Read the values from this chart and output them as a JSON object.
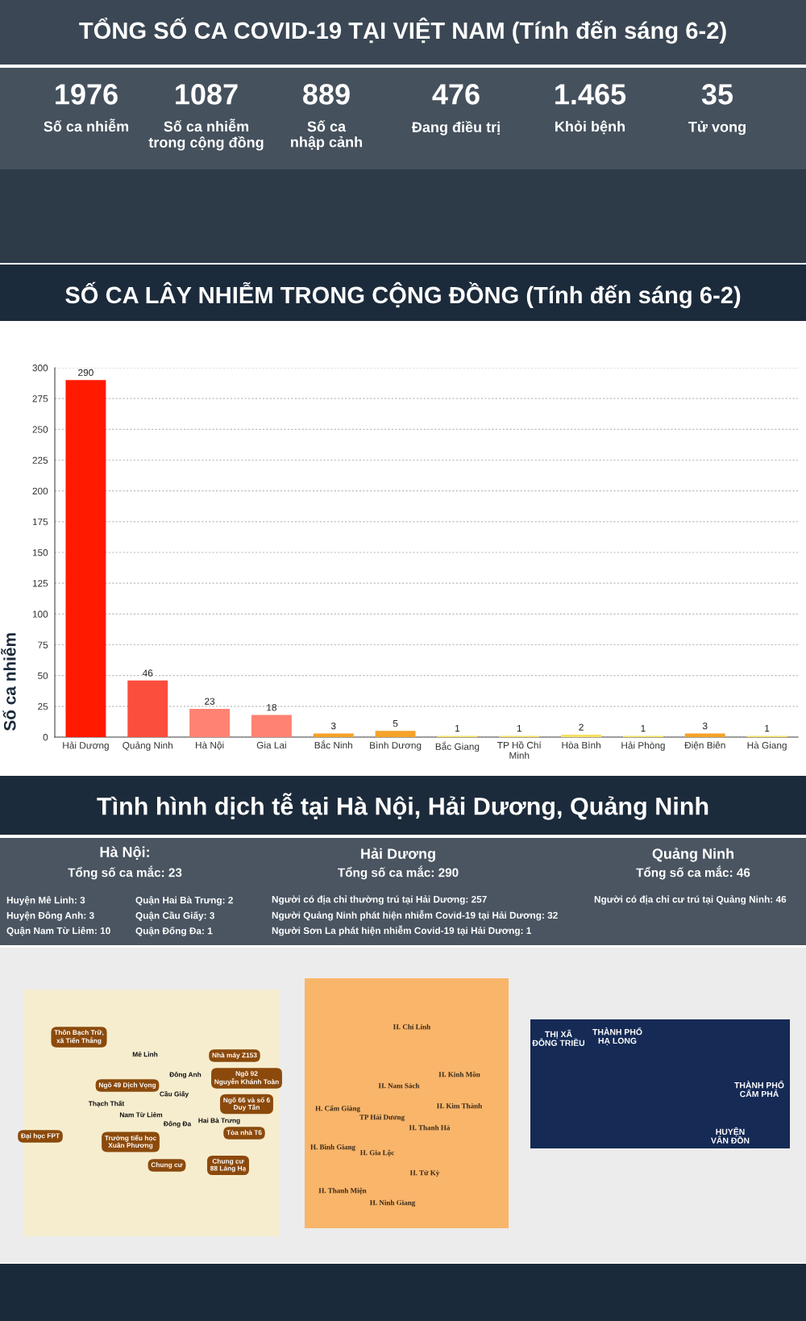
{
  "chart_data": [
    {
      "type": "other",
      "title": "TỔNG SỐ CA COVID-19 TẠI VIỆT NAM (Tính đến sáng 6-2)",
      "annotations": [
        "1976",
        "Số ca nhiễm",
        "1087",
        "Số ca nhiễm\ntrong cộng đồng",
        "889",
        "Số ca\nnhập cảnh",
        "476",
        "Đang điều trị",
        "1.465",
        "Khỏi bệnh",
        "35",
        "Tử vong"
      ]
    },
    {
      "type": "bar",
      "title": "SỐ CA LÂY NHIỄM TRONG CỘNG ĐỒNG (Tính đến sáng 6-2)",
      "ylabel": "Số ca nhiễm",
      "categories": [
        "Hải Dương",
        "Quảng Ninh",
        "Hà Nội",
        "Gia Lai",
        "Bắc Ninh",
        "Bình Dương",
        "Bắc Giang",
        "TP Hồ Chí\nMinh",
        "Hòa Bình",
        "Hải Phòng",
        "Điện Biên",
        "Hà Giang"
      ],
      "values": [
        290,
        46,
        23,
        18,
        3,
        5,
        1,
        1,
        2,
        1,
        3,
        1
      ],
      "colors": [
        "#ff1a00",
        "#fb4e3c",
        "#ff8272",
        "#ff8272",
        "#f5a229",
        "#f5a229",
        "#f7e160",
        "#f7e160",
        "#f7e160",
        "#f7e160",
        "#f5a229",
        "#f7e160"
      ],
      "ylim": [
        0,
        300
      ],
      "yticks": [
        0,
        25,
        50,
        75,
        100,
        125,
        150,
        175,
        200,
        225,
        250,
        275,
        300
      ],
      "grid": "y",
      "data_labels": true
    },
    {
      "type": "other",
      "title": "Tình hình dịch tễ tại Hà Nội, Hải Dương, Quảng Ninh",
      "annotations": [
        "Hà Nội:",
        "Tổng số ca mắc: 23",
        "Huyện Mê Linh: 3",
        "Huyện Đông Anh: 3",
        "Quận Nam Từ Liêm: 10",
        "Quận Hai Bà Trưng: 2",
        "Quận Cầu Giấy: 3",
        "Quận Đống Đa: 1",
        "Hải Dương",
        "Tổng số ca mắc: 290",
        "Người có địa chỉ thường trú tại Hải Dương: 257",
        "Người Quảng Ninh phát hiện nhiễm Covid-19 tại Hải Dương: 32",
        "Người Sơn La phát hiện nhiễm Covid-19 tại Hải Dương: 1",
        "Quảng Ninh",
        "Tổng số ca mắc: 46",
        "Người có địa chỉ cư trú tại Quảng Ninh: 46",
        "Thôn Bạch Trữ,\nxã Tiến Thắng",
        "Mê Linh",
        "Nhà máy Z153",
        "Đông Anh",
        "Ngõ 92\nNguyễn Khánh Toàn",
        "Ngõ 49 Dịch Vọng",
        "Cầu Giấy",
        "Thạch Thất",
        "Ngõ 66 và số 6\nDuy Tân",
        "Nam Từ Liêm",
        "Hai Bà Trưng",
        "Đống Đa",
        "Đại học FPT",
        "Tòa nhà T6",
        "Trường tiểu học\nXuân Phương",
        "Chung cư",
        "Chung cư\n88 Láng Hạ",
        "H. Chí Linh",
        "H. Nam Sách",
        "H. Kinh Môn",
        "H. Cẩm Giàng",
        "TP Hải Dương",
        "H. Kim Thành",
        "H. Thanh Hà",
        "H. Bình Giang",
        "H. Gia Lộc",
        "H. Tứ Kỳ",
        "H. Thanh Miện",
        "H. Ninh Giang",
        "THỊ XÃ\nĐÔNG TRIỀU",
        "THÀNH PHỐ\nHẠ LONG",
        "THÀNH PHỐ\nCẨM PHẢ",
        "HUYỆN\nVÂN ĐỒN"
      ]
    }
  ]
}
